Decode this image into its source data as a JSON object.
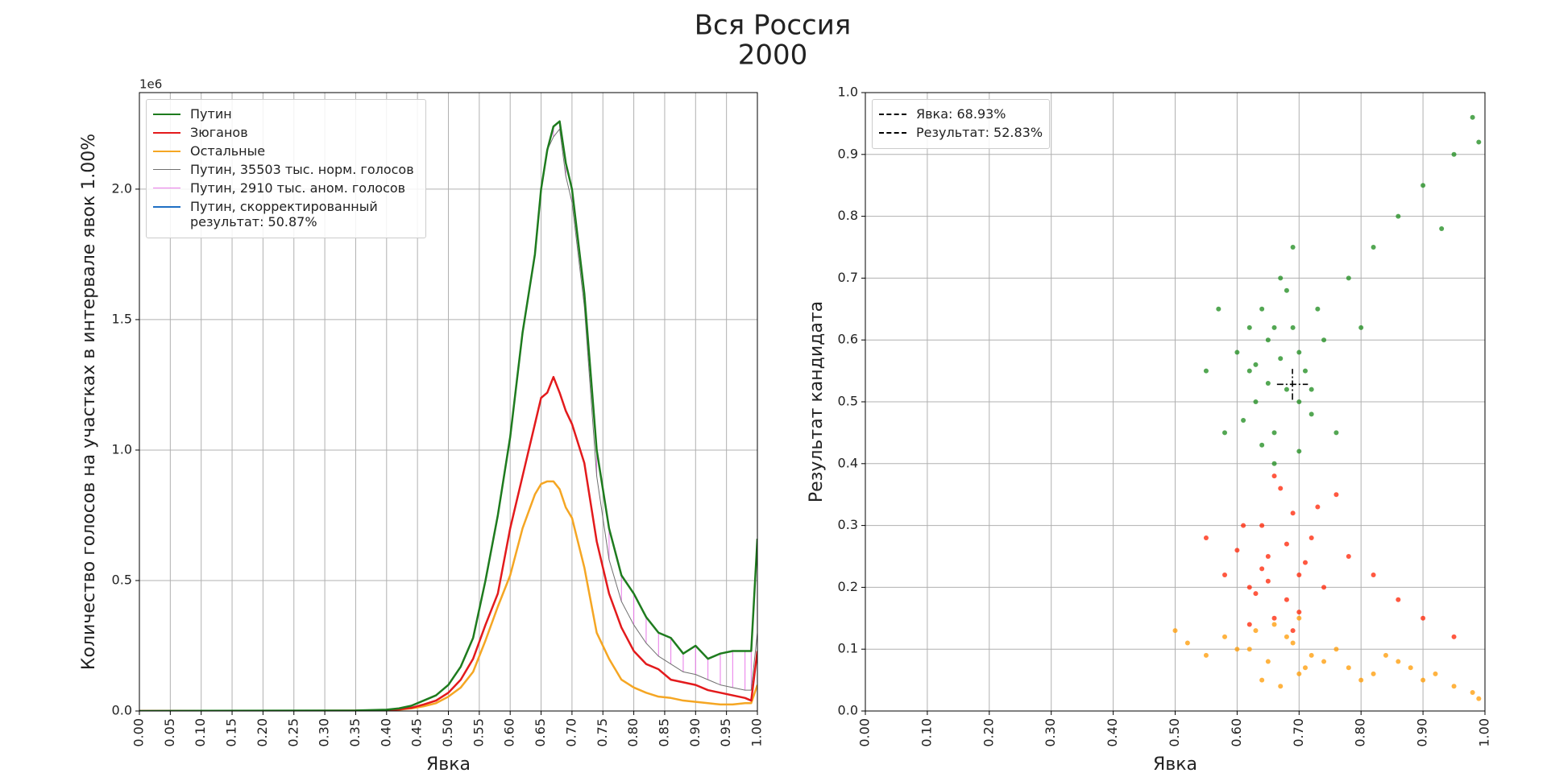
{
  "title_lines": [
    "Вся Россия",
    "2000"
  ],
  "chart_data": [
    {
      "type": "line",
      "x": [
        0,
        0.35,
        0.4,
        0.42,
        0.44,
        0.46,
        0.48,
        0.5,
        0.52,
        0.54,
        0.56,
        0.58,
        0.6,
        0.62,
        0.64,
        0.65,
        0.66,
        0.67,
        0.68,
        0.69,
        0.7,
        0.72,
        0.74,
        0.76,
        0.78,
        0.8,
        0.82,
        0.84,
        0.86,
        0.88,
        0.9,
        0.92,
        0.94,
        0.96,
        0.98,
        0.99,
        1.0
      ],
      "series": [
        {
          "name": "Путин",
          "color": "#1e7b1e",
          "linewidth": 2.5,
          "values": [
            0,
            2000,
            5000,
            10000,
            20000,
            40000,
            60000,
            100000,
            170000,
            280000,
            500000,
            750000,
            1050000,
            1450000,
            1750000,
            2000000,
            2150000,
            2240000,
            2260000,
            2100000,
            2000000,
            1600000,
            1000000,
            700000,
            520000,
            450000,
            360000,
            300000,
            280000,
            220000,
            250000,
            200000,
            220000,
            230000,
            230000,
            230000,
            660000
          ]
        },
        {
          "name": "Зюганов",
          "color": "#e31a1c",
          "linewidth": 2.5,
          "values": [
            0,
            1000,
            3000,
            6000,
            12000,
            25000,
            40000,
            70000,
            120000,
            200000,
            330000,
            450000,
            700000,
            900000,
            1100000,
            1200000,
            1220000,
            1280000,
            1220000,
            1150000,
            1100000,
            950000,
            650000,
            450000,
            320000,
            230000,
            180000,
            160000,
            120000,
            110000,
            100000,
            80000,
            70000,
            60000,
            50000,
            40000,
            230000
          ]
        },
        {
          "name": "Остальные",
          "color": "#f5a623",
          "linewidth": 2.5,
          "values": [
            0,
            1000,
            2000,
            5000,
            10000,
            18000,
            30000,
            55000,
            90000,
            150000,
            270000,
            400000,
            520000,
            700000,
            830000,
            870000,
            880000,
            880000,
            850000,
            780000,
            740000,
            550000,
            300000,
            200000,
            120000,
            90000,
            70000,
            55000,
            50000,
            40000,
            35000,
            30000,
            25000,
            25000,
            30000,
            30000,
            100000
          ]
        },
        {
          "name": "Путин, 35503 тыс. норм. голосов",
          "color": "#707070",
          "linewidth": 1,
          "values": [
            0,
            2000,
            5000,
            10000,
            20000,
            40000,
            60000,
            100000,
            170000,
            280000,
            500000,
            750000,
            1050000,
            1450000,
            1750000,
            2000000,
            2150000,
            2200000,
            2230000,
            2050000,
            1950000,
            1550000,
            900000,
            580000,
            420000,
            330000,
            260000,
            210000,
            180000,
            150000,
            140000,
            120000,
            100000,
            90000,
            80000,
            80000,
            300000
          ]
        },
        {
          "name": "Путин, 2910 тыс. аном. голосов",
          "color": "#e879e8",
          "linewidth": 1,
          "from_series": 3,
          "values": [
            null,
            null,
            null,
            null,
            null,
            null,
            null,
            null,
            null,
            null,
            null,
            null,
            null,
            null,
            null,
            null,
            null,
            2240000,
            2260000,
            2100000,
            2000000,
            1600000,
            1000000,
            700000,
            520000,
            450000,
            360000,
            300000,
            280000,
            220000,
            250000,
            200000,
            220000,
            230000,
            230000,
            230000,
            660000
          ]
        },
        {
          "name": "Путин, скорректированный результат: 50.87%",
          "color": "#1f6fc4",
          "linewidth": 2,
          "values": [
            null,
            null,
            null,
            null,
            null,
            null,
            null,
            null,
            null,
            null,
            null,
            null,
            null,
            null,
            null,
            null,
            null,
            null,
            null,
            null,
            null,
            null,
            null,
            null,
            null,
            null,
            null,
            null,
            null,
            null,
            null,
            null,
            null,
            null,
            null,
            null,
            null
          ]
        }
      ],
      "xlim": [
        0,
        1
      ],
      "ylim": [
        0,
        2370000
      ],
      "xticks": [
        {
          "value": 0,
          "label": "0.00"
        },
        {
          "value": 0.05,
          "label": "0.05"
        },
        {
          "value": 0.1,
          "label": "0.10"
        },
        {
          "value": 0.15,
          "label": "0.15"
        },
        {
          "value": 0.2,
          "label": "0.20"
        },
        {
          "value": 0.25,
          "label": "0.25"
        },
        {
          "value": 0.3,
          "label": "0.30"
        },
        {
          "value": 0.35,
          "label": "0.35"
        },
        {
          "value": 0.4,
          "label": "0.40"
        },
        {
          "value": 0.45,
          "label": "0.45"
        },
        {
          "value": 0.5,
          "label": "0.50"
        },
        {
          "value": 0.55,
          "label": "0.55"
        },
        {
          "value": 0.6,
          "label": "0.60"
        },
        {
          "value": 0.65,
          "label": "0.65"
        },
        {
          "value": 0.7,
          "label": "0.70"
        },
        {
          "value": 0.75,
          "label": "0.75"
        },
        {
          "value": 0.8,
          "label": "0.80"
        },
        {
          "value": 0.85,
          "label": "0.85"
        },
        {
          "value": 0.9,
          "label": "0.90"
        },
        {
          "value": 0.95,
          "label": "0.95"
        },
        {
          "value": 1,
          "label": "1.00"
        }
      ],
      "yticks": [
        {
          "value": 0,
          "label": "0.0"
        },
        {
          "value": 500000,
          "label": "0.5"
        },
        {
          "value": 1000000,
          "label": "1.0"
        },
        {
          "value": 1500000,
          "label": "1.5"
        },
        {
          "value": 2000000,
          "label": "2.0"
        }
      ],
      "y_offset_label": "1e6",
      "xlabel": "Явка",
      "ylabel": "Количество голосов на участках в интервале явок 1.00%",
      "grid": true,
      "legend": "upper left"
    },
    {
      "type": "scatter",
      "series": [
        {
          "color": "#ff9a00",
          "x": [
            0.62,
            0.65,
            0.68,
            0.7,
            0.72,
            0.66,
            0.64,
            0.69,
            0.71,
            0.63,
            0.67,
            0.6,
            0.74,
            0.58,
            0.55,
            0.78,
            0.82,
            0.86,
            0.9,
            0.95,
            0.98,
            0.52,
            0.76,
            0.8,
            0.84,
            0.88,
            0.92,
            0.5,
            0.99,
            0.7
          ],
          "values": [
            0.1,
            0.08,
            0.12,
            0.06,
            0.09,
            0.14,
            0.05,
            0.11,
            0.07,
            0.13,
            0.04,
            0.1,
            0.08,
            0.12,
            0.09,
            0.07,
            0.06,
            0.08,
            0.05,
            0.04,
            0.03,
            0.11,
            0.1,
            0.05,
            0.09,
            0.07,
            0.06,
            0.13,
            0.02,
            0.15
          ]
        },
        {
          "color": "#ff2000",
          "x": [
            0.62,
            0.65,
            0.68,
            0.7,
            0.72,
            0.66,
            0.64,
            0.69,
            0.71,
            0.63,
            0.67,
            0.6,
            0.74,
            0.58,
            0.66,
            0.7,
            0.68,
            0.65,
            0.73,
            0.62,
            0.78,
            0.82,
            0.86,
            0.9,
            0.95,
            0.55,
            0.76,
            0.69,
            0.64,
            0.61
          ],
          "values": [
            0.2,
            0.25,
            0.18,
            0.22,
            0.28,
            0.15,
            0.3,
            0.32,
            0.24,
            0.19,
            0.36,
            0.26,
            0.2,
            0.22,
            0.38,
            0.16,
            0.27,
            0.21,
            0.33,
            0.14,
            0.25,
            0.22,
            0.18,
            0.15,
            0.12,
            0.28,
            0.35,
            0.13,
            0.23,
            0.3
          ]
        },
        {
          "color": "#1a8a1a",
          "x": [
            0.62,
            0.65,
            0.68,
            0.7,
            0.72,
            0.66,
            0.64,
            0.69,
            0.71,
            0.63,
            0.67,
            0.6,
            0.74,
            0.58,
            0.66,
            0.7,
            0.68,
            0.65,
            0.73,
            0.62,
            0.78,
            0.82,
            0.86,
            0.9,
            0.95,
            0.98,
            0.55,
            0.76,
            0.69,
            0.64,
            0.61,
            0.67,
            0.72,
            0.8,
            0.93,
            0.99,
            0.57,
            0.7,
            0.66,
            0.63
          ],
          "values": [
            0.55,
            0.6,
            0.52,
            0.58,
            0.48,
            0.45,
            0.65,
            0.62,
            0.55,
            0.5,
            0.7,
            0.58,
            0.6,
            0.45,
            0.4,
            0.42,
            0.68,
            0.53,
            0.65,
            0.62,
            0.7,
            0.75,
            0.8,
            0.85,
            0.9,
            0.96,
            0.55,
            0.45,
            0.75,
            0.43,
            0.47,
            0.57,
            0.52,
            0.62,
            0.78,
            0.92,
            0.65,
            0.5,
            0.62,
            0.56
          ]
        }
      ],
      "marker": {
        "x": 0.6893,
        "y": 0.5283,
        "labels": [
          "Явка: 68.93%",
          "Результат: 52.83%"
        ]
      },
      "xlim": [
        0,
        1
      ],
      "ylim": [
        0,
        1
      ],
      "xticks": [
        {
          "value": 0,
          "label": "0.00"
        },
        {
          "value": 0.1,
          "label": "0.10"
        },
        {
          "value": 0.2,
          "label": "0.20"
        },
        {
          "value": 0.3,
          "label": "0.30"
        },
        {
          "value": 0.4,
          "label": "0.40"
        },
        {
          "value": 0.5,
          "label": "0.50"
        },
        {
          "value": 0.6,
          "label": "0.60"
        },
        {
          "value": 0.7,
          "label": "0.70"
        },
        {
          "value": 0.8,
          "label": "0.80"
        },
        {
          "value": 0.9,
          "label": "0.90"
        },
        {
          "value": 1,
          "label": "1.00"
        }
      ],
      "yticks": [
        {
          "value": 0,
          "label": "0.0"
        },
        0.1,
        0.2,
        0.3,
        0.4,
        0.5,
        0.6,
        0.7,
        0.8,
        0.9,
        {
          "value": 1,
          "label": "1.0"
        }
      ],
      "xlabel": "Явка",
      "ylabel": "Результат кандидата",
      "grid": true,
      "legend": "upper left"
    }
  ]
}
